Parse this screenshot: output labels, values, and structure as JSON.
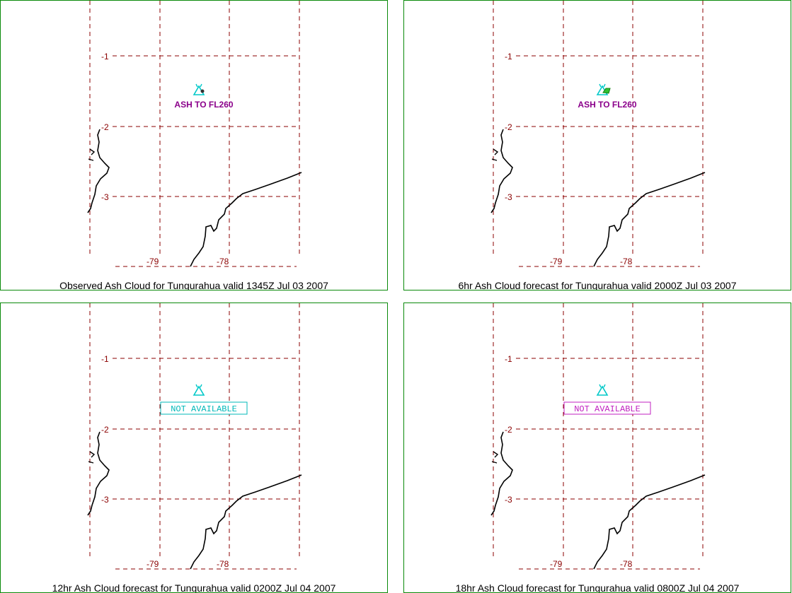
{
  "panels": [
    {
      "caption": "Observed Ash Cloud for Tungurahua valid 1345Z Jul 03 2007",
      "annotation": "ASH TO FL260",
      "annotation_style": "text",
      "annotation_color": "#8b008b",
      "volcano_symbol_color": "#00c8c8",
      "cloud_marker": "small",
      "lat_labels": [
        "-1",
        "-2",
        "-3"
      ],
      "lon_labels": [
        "-79",
        "-78"
      ]
    },
    {
      "caption": "6hr Ash Cloud forecast for Tungurahua valid 2000Z Jul 03 2007",
      "annotation": "ASH TO FL260",
      "annotation_style": "text",
      "annotation_color": "#8b008b",
      "volcano_symbol_color": "#00c8c8",
      "cloud_marker": "green",
      "lat_labels": [
        "-1",
        "-2",
        "-3"
      ],
      "lon_labels": [
        "-79",
        "-78"
      ]
    },
    {
      "caption": "12hr Ash Cloud forecast for Tungurahua valid 0200Z Jul 04 2007",
      "annotation": "NOT AVAILABLE",
      "annotation_style": "box",
      "annotation_color": "#00b8b8",
      "volcano_symbol_color": "#00c8c8",
      "cloud_marker": "none",
      "lat_labels": [
        "-1",
        "-2",
        "-3"
      ],
      "lon_labels": [
        "-79",
        "-78"
      ]
    },
    {
      "caption": "18hr Ash Cloud forecast for Tungurahua valid 0800Z Jul 04 2007",
      "annotation": "NOT AVAILABLE",
      "annotation_style": "box",
      "annotation_color": "#c020c0",
      "volcano_symbol_color": "#00c8c8",
      "cloud_marker": "none",
      "lat_labels": [
        "-1",
        "-2",
        "-3"
      ],
      "lon_labels": [
        "-79",
        "-78"
      ]
    }
  ],
  "colors": {
    "grid": "#8b0000",
    "coastline": "#000000",
    "border": "#0a8a0a"
  }
}
